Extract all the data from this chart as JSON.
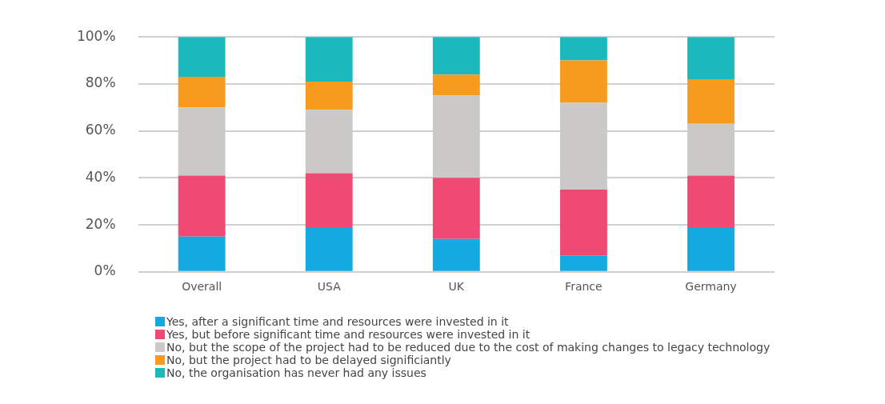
{
  "chart_data": {
    "type": "bar",
    "stacked": true,
    "categories": [
      "Overall",
      "USA",
      "UK",
      "France",
      "Germany"
    ],
    "series": [
      {
        "name": "Yes, after a significant time and resources were invested in it",
        "color": "#12aadf",
        "values": [
          15,
          19,
          14,
          7,
          19
        ]
      },
      {
        "name": "Yes, but before significant time and resources were invested in it",
        "color": "#ee4a73",
        "values": [
          26,
          23,
          26,
          28,
          22
        ]
      },
      {
        "name": "No, but the scope of the project had to be reduced due to the cost of making changes to legacy technology",
        "color": "#cac9c7",
        "values": [
          29,
          27,
          35,
          37,
          22
        ]
      },
      {
        "name": "No, but the project had to be delayed significiantly",
        "color": "#f79b1f",
        "values": [
          13,
          12,
          9,
          18,
          19
        ]
      },
      {
        "name": "No, the organisation has never had any issues",
        "color": "#1bb9bc",
        "values": [
          17,
          19,
          16,
          10,
          18
        ]
      }
    ],
    "ylim": [
      0,
      100
    ],
    "yticks": [
      {
        "value": 0,
        "label": "0%"
      },
      {
        "value": 20,
        "label": "20%"
      },
      {
        "value": 40,
        "label": "40%"
      },
      {
        "value": 60,
        "label": "60%"
      },
      {
        "value": 80,
        "label": "80%"
      },
      {
        "value": 100,
        "label": "100%"
      }
    ],
    "grid": "y",
    "legend": "bottom"
  }
}
